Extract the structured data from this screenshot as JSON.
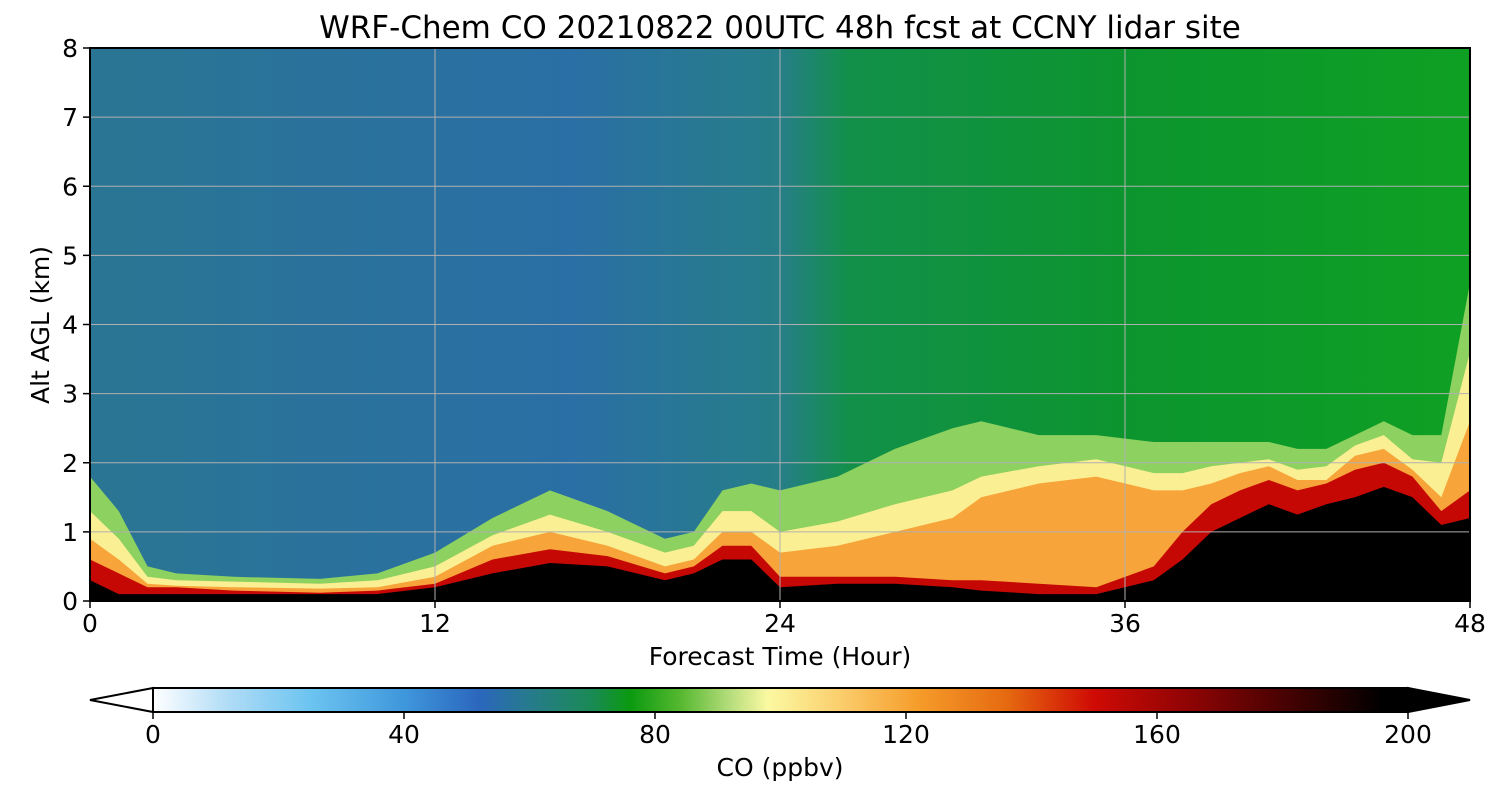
{
  "chart_data": {
    "type": "heatmap",
    "subtype": "filled-contour",
    "title": "WRF-Chem CO  20210822 00UTC 48h fcst at CCNY lidar site",
    "xlabel": "Forecast Time (Hour)",
    "ylabel": "Alt AGL (km)",
    "xlim": [
      0,
      48
    ],
    "ylim": [
      0,
      8
    ],
    "x_ticks": [
      "0",
      "12",
      "24",
      "36",
      "48"
    ],
    "y_ticks": [
      "0",
      "1",
      "2",
      "3",
      "4",
      "5",
      "6",
      "7",
      "8"
    ],
    "grid": true,
    "z_unit_label": "CO  (ppbv)",
    "z_range": [
      0,
      200
    ],
    "colorbar_ticks": [
      "0",
      "40",
      "80",
      "120",
      "160",
      "200"
    ],
    "colorbar_extend": "both",
    "colorbar_placement": "bottom",
    "colorscale": [
      {
        "value": 0,
        "color": "#ffffff"
      },
      {
        "value": 12,
        "color": "#b0dcf6"
      },
      {
        "value": 25,
        "color": "#6cc4f0"
      },
      {
        "value": 40,
        "color": "#3f97dc"
      },
      {
        "value": 52,
        "color": "#2b66bd"
      },
      {
        "value": 60,
        "color": "#267b8c"
      },
      {
        "value": 70,
        "color": "#1a8a55"
      },
      {
        "value": 76,
        "color": "#0a9a10"
      },
      {
        "value": 84,
        "color": "#55b830"
      },
      {
        "value": 92,
        "color": "#b6dd7c"
      },
      {
        "value": 98,
        "color": "#fbf9a2"
      },
      {
        "value": 110,
        "color": "#fbcc6a"
      },
      {
        "value": 122,
        "color": "#f59c2a"
      },
      {
        "value": 136,
        "color": "#e66a10"
      },
      {
        "value": 150,
        "color": "#cf0a04"
      },
      {
        "value": 165,
        "color": "#8f0404"
      },
      {
        "value": 182,
        "color": "#400202"
      },
      {
        "value": 196,
        "color": "#000000"
      }
    ],
    "surface_layer_profile": {
      "hours": [
        0,
        1,
        2,
        3,
        5,
        8,
        10,
        12,
        14,
        16,
        18,
        20,
        21,
        22,
        23,
        24,
        26,
        28,
        30,
        31,
        33,
        35,
        37,
        38,
        39,
        40,
        41,
        42,
        43,
        44,
        45,
        46,
        47,
        48
      ],
      "black_top_km": [
        0.3,
        0.1,
        0.1,
        0.1,
        0.1,
        0.1,
        0.1,
        0.2,
        0.4,
        0.55,
        0.5,
        0.3,
        0.4,
        0.6,
        0.6,
        0.2,
        0.25,
        0.25,
        0.2,
        0.15,
        0.1,
        0.1,
        0.3,
        0.6,
        1.0,
        1.2,
        1.4,
        1.25,
        1.4,
        1.5,
        1.65,
        1.5,
        1.1,
        1.2
      ],
      "red_top_km": [
        0.6,
        0.4,
        0.2,
        0.2,
        0.15,
        0.12,
        0.15,
        0.25,
        0.6,
        0.75,
        0.65,
        0.4,
        0.5,
        0.8,
        0.8,
        0.35,
        0.35,
        0.35,
        0.3,
        0.3,
        0.25,
        0.2,
        0.5,
        1.0,
        1.4,
        1.6,
        1.75,
        1.6,
        1.7,
        1.9,
        2.0,
        1.8,
        1.3,
        1.6
      ],
      "orange_top_km": [
        0.9,
        0.6,
        0.25,
        0.22,
        0.2,
        0.18,
        0.2,
        0.35,
        0.8,
        1.0,
        0.8,
        0.5,
        0.6,
        1.0,
        1.0,
        0.7,
        0.8,
        1.0,
        1.2,
        1.5,
        1.7,
        1.8,
        1.6,
        1.6,
        1.7,
        1.85,
        1.95,
        1.75,
        1.75,
        2.1,
        2.2,
        1.9,
        1.5,
        2.6
      ],
      "yellow_top_km": [
        1.3,
        0.9,
        0.35,
        0.3,
        0.28,
        0.25,
        0.3,
        0.5,
        0.95,
        1.25,
        1.0,
        0.7,
        0.8,
        1.3,
        1.3,
        1.0,
        1.15,
        1.4,
        1.6,
        1.8,
        1.95,
        2.05,
        1.85,
        1.85,
        1.95,
        2.0,
        2.05,
        1.9,
        1.95,
        2.25,
        2.4,
        2.05,
        2.0,
        3.6
      ],
      "lightgreen_top_km": [
        1.8,
        1.3,
        0.5,
        0.4,
        0.35,
        0.32,
        0.4,
        0.7,
        1.2,
        1.6,
        1.3,
        0.9,
        1.0,
        1.6,
        1.7,
        1.6,
        1.8,
        2.2,
        2.5,
        2.6,
        2.4,
        2.4,
        2.3,
        2.3,
        2.3,
        2.3,
        2.3,
        2.2,
        2.2,
        2.4,
        2.6,
        2.4,
        2.4,
        4.6
      ]
    }
  }
}
